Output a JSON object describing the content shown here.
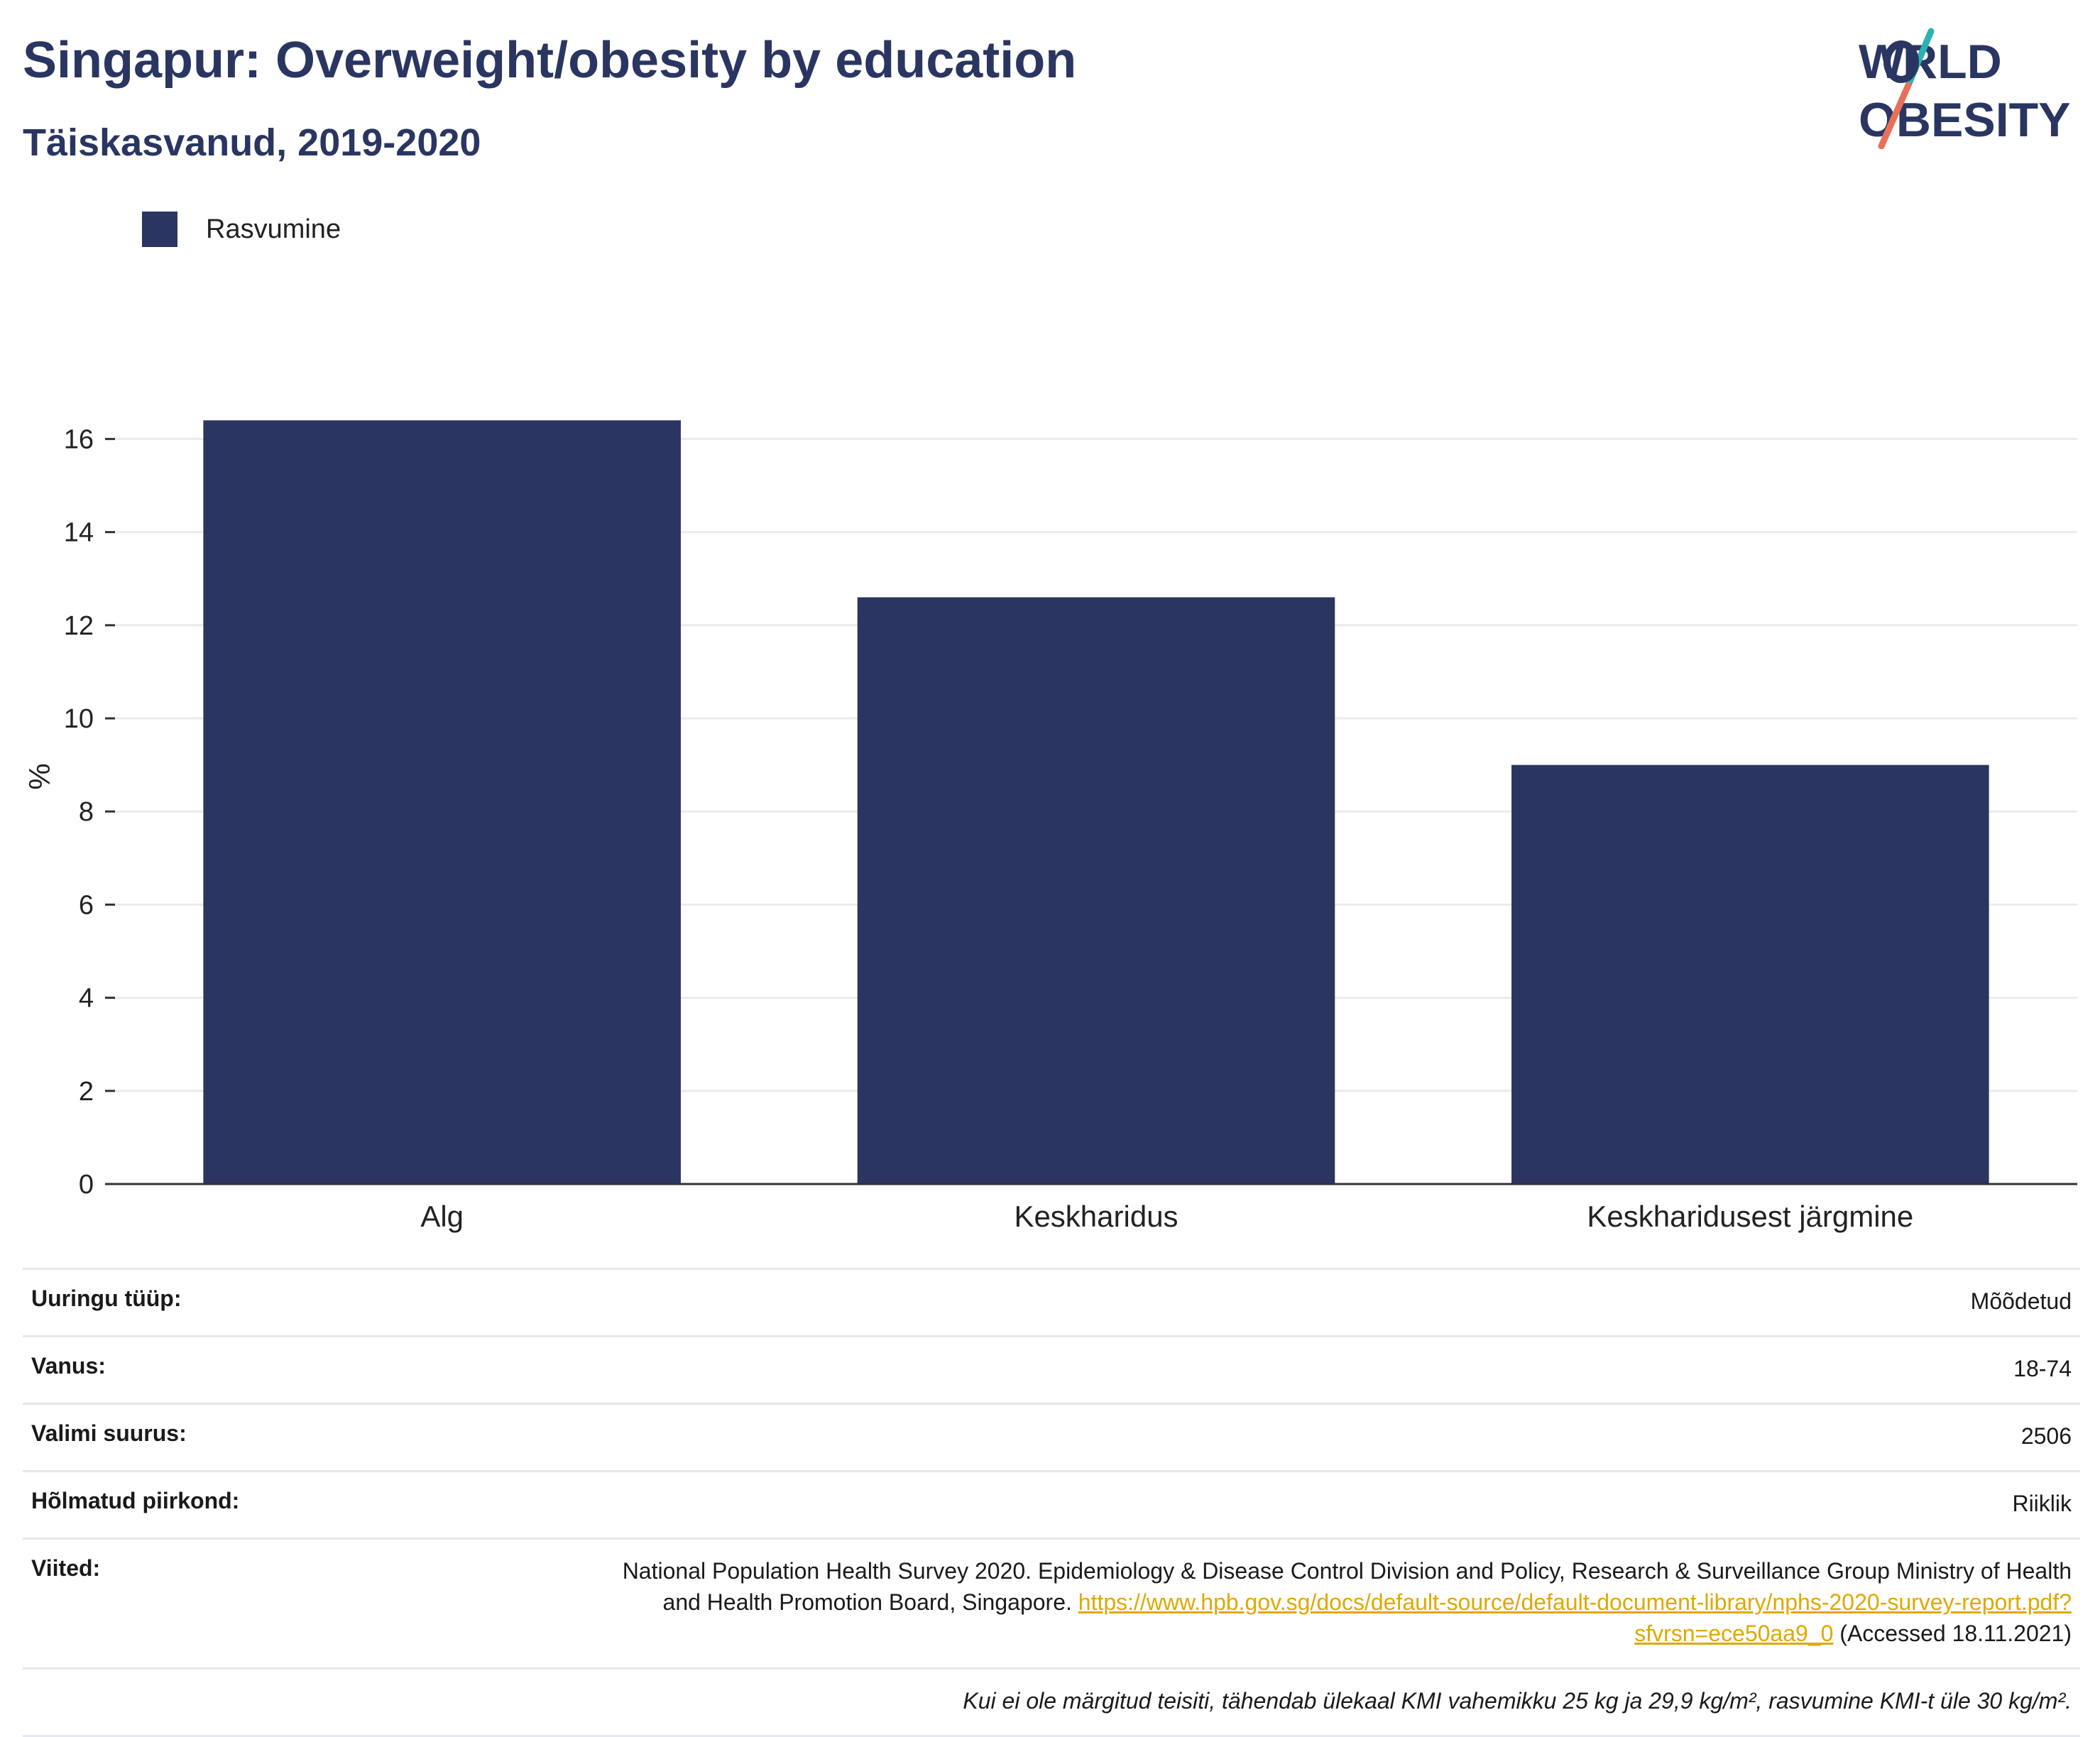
{
  "header": {
    "title": "Singapur: Overweight/obesity by education",
    "subtitle": "Täiskasvanud, 2019-2020"
  },
  "logo": {
    "line1": "WORLD",
    "line2": "OBESITY",
    "colors": [
      "#2a3661",
      "#2ab3b1",
      "#e8705a"
    ]
  },
  "chart_data": {
    "type": "bar",
    "categories": [
      "Alg",
      "Keskharidus",
      "Keskharidusest järgmine"
    ],
    "series": [
      {
        "name": "Rasvumine",
        "values": [
          16.4,
          12.6,
          9.0
        ],
        "color": "#2a3661"
      }
    ],
    "ylabel": "%",
    "ylim": [
      0,
      17.5
    ],
    "yticks": [
      0,
      2,
      4,
      6,
      8,
      10,
      12,
      14,
      16
    ],
    "grid": true,
    "legend": "top-left"
  },
  "meta": {
    "survey_type_label": "Uuringu tüüp:",
    "survey_type_value": "Mõõdetud",
    "age_label": "Vanus:",
    "age_value": "18-74",
    "sample_label": "Valimi suurus:",
    "sample_value": "2506",
    "region_label": "Hõlmatud piirkond:",
    "region_value": "Riiklik",
    "refs_label": "Viited:",
    "refs_text_before": "National Population Health Survey 2020. Epidemiology & Disease Control Division and Policy, Research & Surveillance Group Ministry of Health and Health Promotion Board, Singapore. ",
    "refs_link": "https://www.hpb.gov.sg/docs/default-source/default-document-library/nphs-2020-survey-report.pdf?sfvrsn=ece50aa9_0",
    "refs_text_after": " (Accessed 18.11.2021)",
    "note": "Kui ei ole märgitud teisiti, tähendab ülekaal KMI vahemikku 25 kg ja 29,9 kg/m², rasvumine KMI-t üle 30 kg/m²."
  }
}
